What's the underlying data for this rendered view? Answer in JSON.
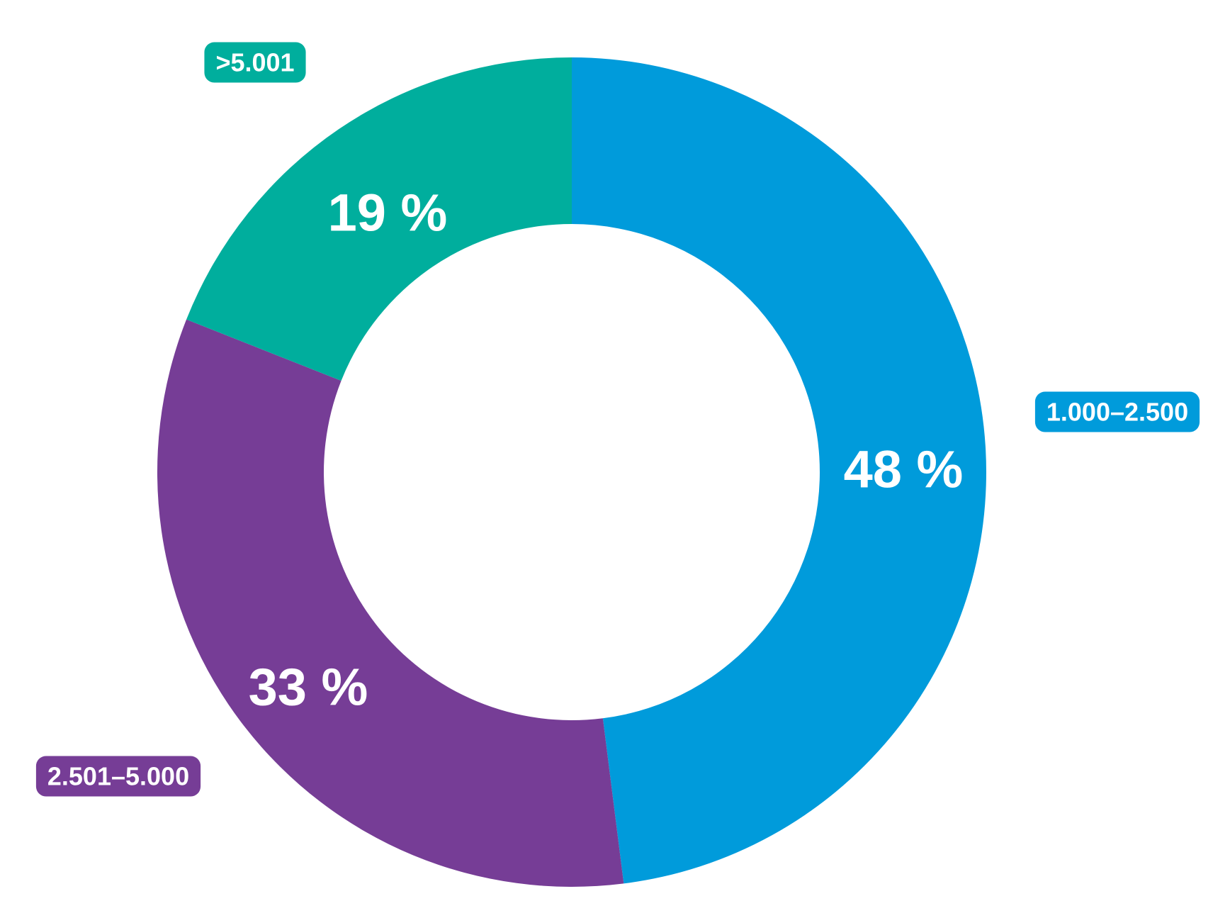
{
  "chart_data": {
    "type": "pie",
    "donut": true,
    "categories": [
      "1.000–2.500",
      "2.501–5.000",
      ">5.001"
    ],
    "values": [
      48,
      33,
      19
    ],
    "value_labels": [
      "48 %",
      "33 %",
      "19 %"
    ],
    "colors": [
      "#009bdb",
      "#763d96",
      "#00ae9d"
    ],
    "start_angle_deg": 0,
    "direction": "clockwise"
  }
}
